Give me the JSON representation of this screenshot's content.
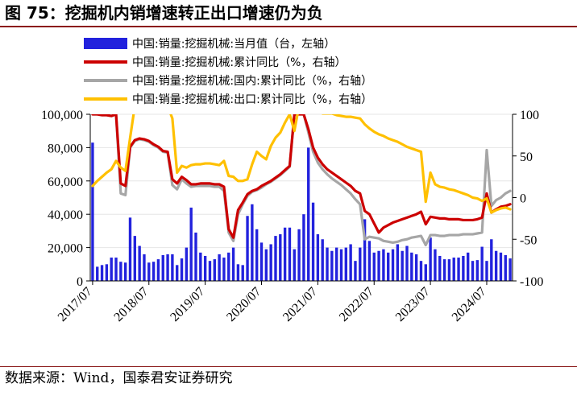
{
  "figure": {
    "title": "图 75：挖掘机内销增速转正出口增速仍为负",
    "source": "数据来源：Wind，国泰君安证券研究"
  },
  "chart_data": {
    "type": "bar+line",
    "legend_position": "top",
    "left_axis": {
      "range": [
        0,
        100000
      ],
      "ticks": [
        "0",
        "20,000",
        "40,000",
        "60,000",
        "80,000",
        "100,000"
      ]
    },
    "right_axis": {
      "range": [
        -100,
        100
      ],
      "ticks": [
        "-100",
        "-50",
        "0",
        "50",
        "100"
      ]
    },
    "x_ticks": [
      "2017/07",
      "2018/07",
      "2019/07",
      "2020/07",
      "2021/07",
      "2022/07",
      "2023/07",
      "2024/07"
    ],
    "x_start": "2017/07",
    "series": [
      {
        "name": "中国:销量:挖掘机械:当月值（台，左轴）",
        "type": "bar",
        "axis": "left",
        "color": "#2222dd",
        "values": [
          83000,
          8500,
          9500,
          10000,
          14000,
          14000,
          11500,
          11000,
          38000,
          27000,
          21000,
          16000,
          11000,
          11500,
          13000,
          15500,
          16000,
          16000,
          9500,
          13500,
          20000,
          44000,
          29000,
          17000,
          15000,
          12000,
          13000,
          16000,
          14000,
          17000,
          20000,
          10000,
          9500,
          39000,
          46000,
          31000,
          23000,
          19000,
          22000,
          27000,
          28000,
          32000,
          32000,
          19000,
          31000,
          40000,
          80000,
          47000,
          28000,
          25000,
          20000,
          18000,
          20000,
          19000,
          20000,
          22000,
          12000,
          20000,
          37000,
          24000,
          17000,
          18000,
          19000,
          17000,
          19000,
          22000,
          18000,
          21000,
          17000,
          16000,
          12000,
          10000,
          26000,
          19000,
          15000,
          13000,
          13000,
          14000,
          14000,
          15000,
          17000,
          12000,
          12500,
          20500,
          12000,
          25000,
          18000,
          17000,
          15500,
          13500
        ]
      },
      {
        "name": "中国:销量:挖掘机械:累计同比（%，右轴）",
        "type": "line",
        "axis": "right",
        "color": "#cc0000",
        "values": [
          100,
          100,
          99,
          99,
          98,
          100,
          17,
          14,
          61,
          69,
          71,
          70,
          68,
          64,
          61,
          56,
          55,
          22,
          17,
          25,
          21,
          16,
          16,
          17,
          17,
          17,
          16,
          16,
          13,
          -38,
          -48,
          -15,
          -6,
          4,
          8,
          10,
          14,
          17,
          20,
          24,
          28,
          33,
          38,
          100,
          100,
          100,
          82,
          60,
          48,
          40,
          34,
          30,
          26,
          22,
          18,
          14,
          8,
          5,
          -16,
          -20,
          -31,
          -42,
          -36,
          -33,
          -30,
          -28,
          -26,
          -24,
          -22,
          -20,
          -17,
          -32,
          -23,
          -24,
          -25,
          -25,
          -26,
          -26,
          -26,
          -27,
          -27,
          -27,
          -26,
          -24,
          5,
          -18,
          -14,
          -11,
          -10,
          -8
        ]
      },
      {
        "name": "中国:销量:挖掘机械:国内:累计同比（%，右轴）",
        "type": "line",
        "axis": "right",
        "color": "#a6a6a6",
        "values": [
          100,
          100,
          99,
          99,
          98,
          100,
          5,
          3,
          60,
          68,
          70,
          69,
          67,
          63,
          60,
          55,
          54,
          15,
          10,
          22,
          17,
          13,
          14,
          14,
          14,
          14,
          13,
          13,
          8,
          -42,
          -52,
          -20,
          -8,
          2,
          7,
          9,
          12,
          16,
          19,
          23,
          27,
          32,
          37,
          100,
          100,
          100,
          78,
          55,
          42,
          34,
          28,
          23,
          19,
          15,
          10,
          5,
          -2,
          -8,
          -50,
          -47,
          -48,
          -49,
          -52,
          -53,
          -54,
          -53,
          -51,
          -50,
          -48,
          -47,
          -46,
          -57,
          -45,
          -45,
          -46,
          -46,
          -45,
          -45,
          -45,
          -44,
          -44,
          -44,
          -43,
          -42,
          57,
          -10,
          -3,
          0,
          5,
          8
        ]
      },
      {
        "name": "中国:销量:挖掘机械:出口:累计同比（%，右轴）",
        "type": "line",
        "axis": "right",
        "color": "#ffc000",
        "values": [
          14,
          20,
          25,
          30,
          34,
          44,
          36,
          32,
          72,
          110,
          120,
          125,
          120,
          125,
          125,
          115,
          110,
          95,
          30,
          38,
          36,
          39,
          40,
          40,
          41,
          41,
          40,
          39,
          44,
          26,
          25,
          20,
          20,
          22,
          40,
          55,
          50,
          46,
          62,
          72,
          78,
          90,
          100,
          80,
          110,
          140,
          130,
          110,
          104,
          101,
          101,
          101,
          99,
          98,
          97,
          97,
          96,
          95,
          88,
          83,
          79,
          76,
          74,
          71,
          69,
          67,
          64,
          61,
          59,
          57,
          55,
          -5,
          30,
          16,
          13,
          12,
          10,
          9,
          7,
          5,
          3,
          0,
          -1,
          -4,
          -1,
          -18,
          -15,
          -13,
          -12,
          -14
        ]
      }
    ]
  }
}
